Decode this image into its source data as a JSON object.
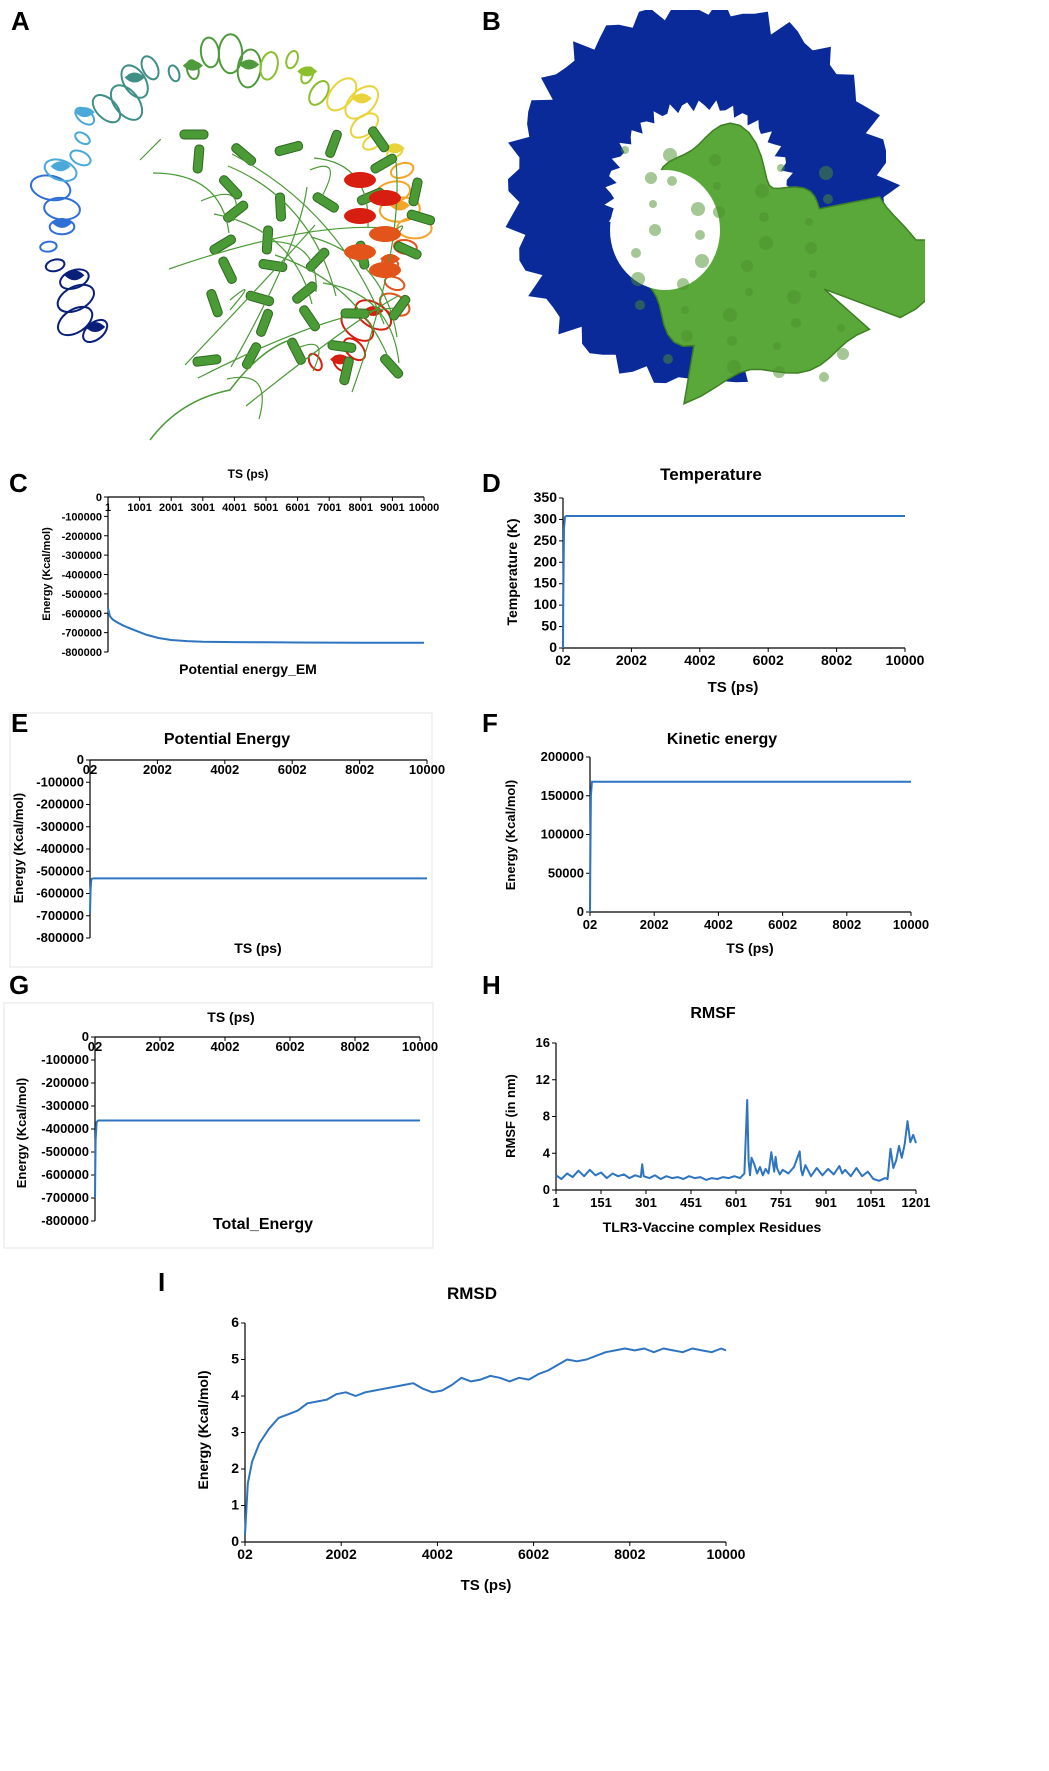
{
  "panel_letters": [
    "A",
    "B",
    "C",
    "D",
    "E",
    "F",
    "G",
    "H",
    "I"
  ],
  "structures": {
    "a": {
      "colors": [
        "#0a1f7a",
        "#2f6fd6",
        "#4aa9d8",
        "#3f8f86",
        "#4f9a3c",
        "#8bbf2e",
        "#e8d43a",
        "#f2a52b",
        "#e2541a",
        "#d81e10",
        "#4a9a36"
      ]
    },
    "b": {
      "receptor_color": "#0a2a9a",
      "ligand_color": "#5aa83a"
    }
  },
  "colors": {
    "series": "#2e74c0",
    "axis": "#000000"
  },
  "chart_data": [
    {
      "id": "C",
      "type": "line",
      "title": "Potential energy_EM",
      "xlabel": "TS (ps)",
      "ylabel": "Energy (Kcal/mol)",
      "x_ticks": [
        "1",
        "1001",
        "2001",
        "3001",
        "4001",
        "5001",
        "6001",
        "7001",
        "8001",
        "9001",
        "10000"
      ],
      "y_ticks": [
        "0",
        "-100000",
        "-200000",
        "-300000",
        "-400000",
        "-500000",
        "-600000",
        "-700000",
        "-800000"
      ],
      "xlim": [
        1,
        10000
      ],
      "ylim": [
        -800000,
        0
      ],
      "x": [
        1,
        60,
        150,
        300,
        500,
        800,
        1200,
        1600,
        2000,
        2500,
        3000,
        4000,
        5000,
        6000,
        7000,
        8000,
        9000,
        10000
      ],
      "y": [
        -575000,
        -615000,
        -632000,
        -648000,
        -665000,
        -685000,
        -710000,
        -728000,
        -738000,
        -744000,
        -747000,
        -749000,
        -750000,
        -751000,
        -751500,
        -752000,
        -752000,
        -752000
      ]
    },
    {
      "id": "D",
      "type": "line",
      "title": "Temperature",
      "xlabel": "TS (ps)",
      "ylabel": "Temperature (K)",
      "x_ticks": [
        "02",
        "2002",
        "4002",
        "6002",
        "8002",
        "10000"
      ],
      "y_ticks": [
        "350",
        "300",
        "250",
        "200",
        "150",
        "100",
        "50",
        "0"
      ],
      "xlim": [
        2,
        10000
      ],
      "ylim": [
        0,
        350
      ],
      "x": [
        2,
        10,
        30,
        60,
        100,
        10000
      ],
      "y": [
        0,
        120,
        280,
        306,
        308,
        308
      ]
    },
    {
      "id": "E",
      "type": "line",
      "title": "Potential Energy",
      "xlabel": "TS (ps)",
      "ylabel": "Energy (Kcal/mol)",
      "x_ticks": [
        "02",
        "2002",
        "4002",
        "6002",
        "8002",
        "10000"
      ],
      "y_ticks": [
        "0",
        "-100000",
        "-200000",
        "-300000",
        "-400000",
        "-500000",
        "-600000",
        "-700000",
        "-800000"
      ],
      "xlim": [
        2,
        10000
      ],
      "ylim": [
        -800000,
        0
      ],
      "x": [
        2,
        20,
        40,
        100,
        10000
      ],
      "y": [
        -690000,
        -580000,
        -535000,
        -532000,
        -532000
      ]
    },
    {
      "id": "F",
      "type": "line",
      "title": "Kinetic energy",
      "xlabel": "TS (ps)",
      "ylabel": "Energy (Kcal/mol)",
      "x_ticks": [
        "02",
        "2002",
        "4002",
        "6002",
        "8002",
        "10000"
      ],
      "y_ticks": [
        "200000",
        "150000",
        "100000",
        "50000",
        "0"
      ],
      "xlim": [
        2,
        10000
      ],
      "ylim": [
        0,
        200000
      ],
      "x": [
        2,
        10,
        30,
        60,
        10000
      ],
      "y": [
        0,
        60000,
        150000,
        168000,
        168000
      ]
    },
    {
      "id": "G",
      "type": "line",
      "title": "Total_Energy",
      "xlabel": "TS (ps)",
      "ylabel": "Energy (Kcal/mol)",
      "x_ticks": [
        "02",
        "2002",
        "4002",
        "6002",
        "8002",
        "10000"
      ],
      "y_ticks": [
        "0",
        "-100000",
        "-200000",
        "-300000",
        "-400000",
        "-500000",
        "-600000",
        "-700000",
        "-800000"
      ],
      "xlim": [
        2,
        10000
      ],
      "ylim": [
        -800000,
        0
      ],
      "x": [
        2,
        20,
        50,
        100,
        10000
      ],
      "y": [
        -700000,
        -450000,
        -370000,
        -363000,
        -363000
      ]
    },
    {
      "id": "H",
      "type": "line",
      "title": "RMSF",
      "xlabel": "TLR3-Vaccine complex Residues",
      "ylabel": "RMSF (in nm)",
      "x_ticks": [
        "1",
        "151",
        "301",
        "451",
        "601",
        "751",
        "901",
        "1051",
        "1201"
      ],
      "y_ticks": [
        "16",
        "12",
        "8",
        "4",
        "0"
      ],
      "xlim": [
        1,
        1270
      ],
      "ylim": [
        0,
        16
      ],
      "x": [
        1,
        20,
        40,
        60,
        80,
        100,
        120,
        140,
        160,
        180,
        200,
        220,
        240,
        260,
        280,
        300,
        305,
        310,
        330,
        350,
        370,
        390,
        410,
        430,
        450,
        470,
        490,
        510,
        530,
        550,
        570,
        590,
        610,
        630,
        650,
        665,
        675,
        680,
        685,
        690,
        700,
        710,
        720,
        730,
        740,
        750,
        760,
        770,
        775,
        780,
        790,
        800,
        820,
        840,
        860,
        865,
        870,
        880,
        900,
        920,
        940,
        960,
        980,
        1000,
        1010,
        1020,
        1040,
        1060,
        1080,
        1100,
        1120,
        1140,
        1160,
        1170,
        1180,
        1190,
        1200,
        1210,
        1220,
        1230,
        1240,
        1250,
        1260,
        1270
      ],
      "y": [
        1.6,
        1.2,
        1.8,
        1.4,
        2.1,
        1.5,
        2.2,
        1.6,
        1.9,
        1.3,
        1.8,
        1.5,
        1.7,
        1.3,
        1.6,
        1.4,
        2.8,
        1.5,
        1.3,
        1.6,
        1.2,
        1.5,
        1.3,
        1.4,
        1.2,
        1.5,
        1.3,
        1.4,
        1.1,
        1.3,
        1.2,
        1.4,
        1.3,
        1.5,
        1.3,
        1.8,
        9.8,
        3.2,
        1.6,
        3.5,
        2.8,
        1.8,
        2.5,
        1.6,
        2.3,
        1.8,
        4.1,
        2.0,
        3.6,
        2.4,
        1.7,
        2.2,
        1.8,
        2.5,
        4.2,
        2.2,
        1.6,
        2.7,
        1.5,
        2.4,
        1.6,
        2.3,
        1.7,
        2.6,
        1.8,
        2.2,
        1.5,
        2.4,
        1.5,
        2.0,
        1.2,
        1.0,
        1.3,
        1.2,
        4.5,
        2.4,
        3.2,
        4.8,
        3.5,
        5.0,
        7.5,
        5.2,
        6.0,
        5.1
      ]
    },
    {
      "id": "I",
      "type": "line",
      "title": "RMSD",
      "xlabel": "TS (ps)",
      "ylabel": "Energy (Kcal/mol)",
      "x_ticks": [
        "02",
        "2002",
        "4002",
        "6002",
        "8002",
        "10000"
      ],
      "y_ticks": [
        "6",
        "5",
        "4",
        "3",
        "2",
        "1",
        "0"
      ],
      "xlim": [
        2,
        10000
      ],
      "ylim": [
        0,
        6
      ],
      "x": [
        2,
        60,
        150,
        300,
        500,
        700,
        900,
        1100,
        1300,
        1500,
        1700,
        1900,
        2100,
        2300,
        2500,
        2700,
        2900,
        3100,
        3300,
        3500,
        3700,
        3900,
        4100,
        4300,
        4500,
        4700,
        4900,
        5100,
        5300,
        5500,
        5700,
        5900,
        6100,
        6300,
        6500,
        6700,
        6900,
        7100,
        7300,
        7500,
        7700,
        7900,
        8100,
        8300,
        8500,
        8700,
        8900,
        9100,
        9300,
        9500,
        9700,
        9900,
        10000
      ],
      "y": [
        0.2,
        1.6,
        2.2,
        2.7,
        3.1,
        3.4,
        3.5,
        3.6,
        3.8,
        3.85,
        3.9,
        4.05,
        4.1,
        4.0,
        4.1,
        4.15,
        4.2,
        4.25,
        4.3,
        4.35,
        4.2,
        4.1,
        4.15,
        4.3,
        4.5,
        4.4,
        4.45,
        4.55,
        4.5,
        4.4,
        4.5,
        4.45,
        4.6,
        4.7,
        4.85,
        5.0,
        4.95,
        5.0,
        5.1,
        5.2,
        5.25,
        5.3,
        5.25,
        5.3,
        5.2,
        5.3,
        5.25,
        5.2,
        5.3,
        5.25,
        5.2,
        5.3,
        5.25
      ]
    }
  ]
}
